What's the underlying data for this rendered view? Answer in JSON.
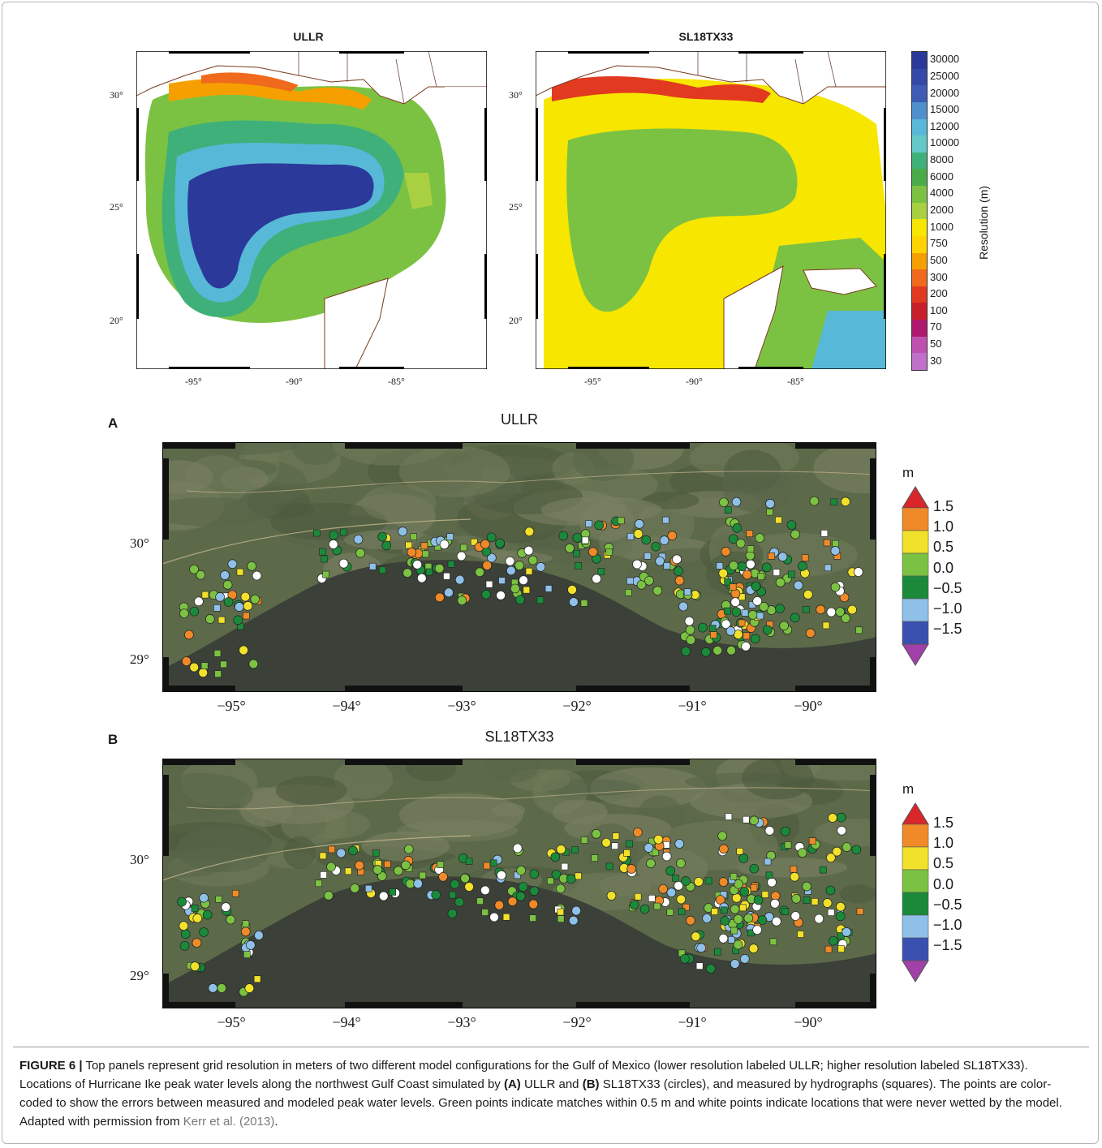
{
  "top": {
    "left_title": "ULLR",
    "right_title": "SL18TX33",
    "lat_ticks": [
      "30°",
      "25°",
      "20°"
    ],
    "lon_ticks": [
      "-95°",
      "-90°",
      "-85°"
    ],
    "colorbar_labels": [
      "30000",
      "25000",
      "20000",
      "15000",
      "12000",
      "10000",
      "8000",
      "6000",
      "4000",
      "2000",
      "1000",
      "750",
      "500",
      "300",
      "200",
      "100",
      "70",
      "50",
      "30"
    ],
    "colorbar_colors": [
      "#2b3a9a",
      "#3348a8",
      "#3e5cb6",
      "#4f8fcc",
      "#58b8d8",
      "#63c8c8",
      "#3fb07a",
      "#4aac48",
      "#7cc242",
      "#a8d040",
      "#f7e600",
      "#ffd400",
      "#f5a000",
      "#ef6a1c",
      "#e23a20",
      "#c8202a",
      "#b01870",
      "#c050b0",
      "#c070c8"
    ],
    "colorbar_title": "Resolution (m)"
  },
  "panelA": {
    "letter": "A",
    "title": "ULLR"
  },
  "panelB": {
    "letter": "B",
    "title": "SL18TX33"
  },
  "bottom_axes": {
    "lat_ticks": [
      "30°",
      "29°"
    ],
    "lon_ticks": [
      "−95°",
      "−94°",
      "−93°",
      "−92°",
      "−91°",
      "−90°"
    ]
  },
  "error_colorbar": {
    "unit": "m",
    "labels": [
      "1.5",
      "1.0",
      "0.5",
      "0.0",
      "−0.5",
      "−1.0",
      "−1.5"
    ],
    "colors": [
      "#d9262a",
      "#f08a28",
      "#f2e12a",
      "#7cc242",
      "#1a8a3a",
      "#8fc0e8",
      "#3a50b0",
      "#a040a8"
    ]
  },
  "caption": {
    "label": "FIGURE 6 |",
    "text1": " Top panels represent grid resolution in meters of two different model configurations for the Gulf of Mexico (lower resolution labeled ULLR; higher resolution labeled SL18TX33). Locations of Hurricane Ike peak water levels along the northwest Gulf Coast simulated by ",
    "boldA": "(A)",
    "text2": " ULLR and ",
    "boldB": "(B)",
    "text3": " SL18TX33 (circles), and measured by hydrographs (squares). The points are color-coded to show the errors between measured and modeled peak water levels. Green points indicate matches within 0.5 m and white points indicate locations that were never wetted by the model. Adapted with permission from ",
    "citation": "Kerr et al. (2013)",
    "end": "."
  }
}
